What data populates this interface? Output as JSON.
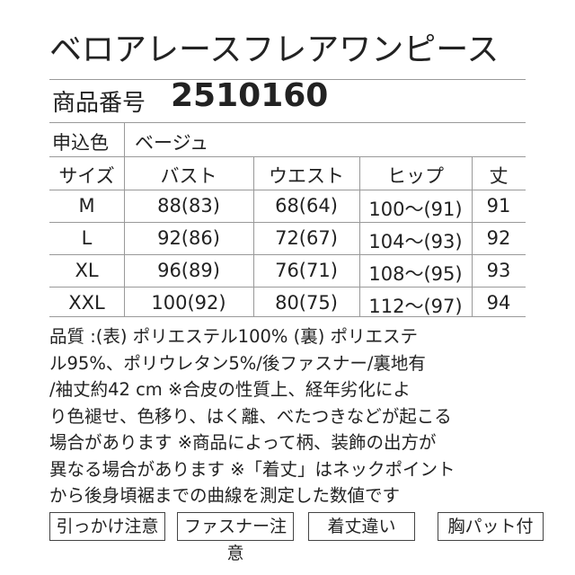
{
  "header": {
    "title": "ベロアレースフレアワンピース",
    "product_number_label": "商品番号",
    "product_number": "2510160"
  },
  "color": {
    "label": "申込色",
    "value": "ベージュ"
  },
  "table": {
    "columns": [
      "サイズ",
      "バスト",
      "ウエスト",
      "ヒップ",
      "丈"
    ],
    "rows": [
      [
        "M",
        "88(83)",
        "68(64)",
        "100〜(91)",
        "91"
      ],
      [
        "L",
        "92(86)",
        "72(67)",
        "104〜(93)",
        "92"
      ],
      [
        "XL",
        "96(89)",
        "76(71)",
        "108〜(95)",
        "93"
      ],
      [
        "XXL",
        "100(92)",
        "80(75)",
        "112〜(97)",
        "94"
      ]
    ]
  },
  "notes": [
    "品質 :(表) ポリエステル100% (裏) ポリエステ",
    "ル95%、ポリウレタン5%/後ファスナー/裏地有",
    "/袖丈約42 cm ※合皮の性質上、経年劣化によ",
    "り色褪せ、色移り、はく離、べたつきなどが起こる",
    "場合があります ※商品によって柄、装飾の出方が",
    "異なる場合があります ※「着丈」はネックポイント",
    "から後身頃裾までの曲線を測定した数値です"
  ],
  "badges": [
    "引っかけ注意",
    "ファスナー注意",
    "着丈違い",
    "胸パット付"
  ]
}
